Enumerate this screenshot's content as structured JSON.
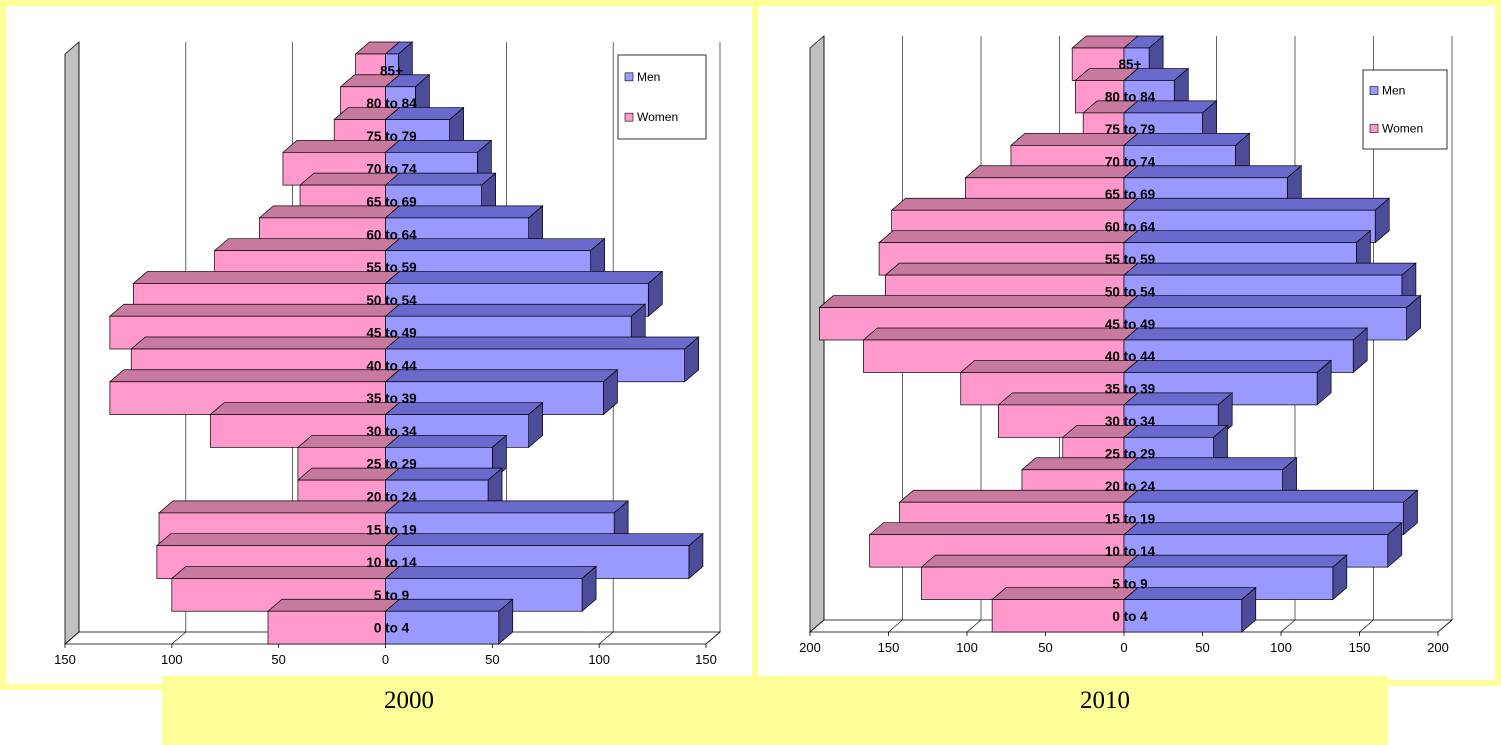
{
  "colors": {
    "men": "#9999ff",
    "men_top": "#6a6acc",
    "men_side": "#4c4c99",
    "women": "#ff99cc",
    "women_top": "#c77a9e",
    "women_side": "#b36b8f",
    "frame": "#ffff99",
    "wall": "#c0c0c0",
    "grid": "#000000"
  },
  "captions": {
    "left": "2000",
    "right": "2010"
  },
  "chart_data": [
    {
      "type": "bar",
      "orientation": "horizontal-pyramid",
      "year_label": "2000",
      "categories": [
        "0 to 4",
        "5 to 9",
        "10 to 14",
        "15 to 19",
        "20 to 24",
        "25 to 29",
        "30 to 34",
        "35 to 39",
        "40 to 44",
        "45 to 49",
        "50 to 54",
        "55 to 59",
        "60 to 64",
        "65 to 69",
        "70 to 74",
        "75 to 79",
        "80 to 84",
        "85+"
      ],
      "series": [
        {
          "name": "Men",
          "values": [
            53,
            92,
            142,
            107,
            48,
            50,
            67,
            102,
            140,
            115,
            123,
            96,
            67,
            45,
            43,
            30,
            14,
            6
          ]
        },
        {
          "name": "Women",
          "values": [
            55,
            100,
            107,
            106,
            41,
            41,
            82,
            129,
            119,
            129,
            118,
            80,
            59,
            40,
            48,
            24,
            21,
            14
          ]
        }
      ],
      "xlim": [
        -150,
        150
      ],
      "xticks": [
        -150,
        -100,
        -50,
        0,
        50,
        100,
        150
      ],
      "xtick_labels": [
        "150",
        "100",
        "50",
        "0",
        "50",
        "100",
        "150"
      ],
      "grid": true,
      "legend": {
        "position": "top-right",
        "entries": [
          "Men",
          "Women"
        ]
      }
    },
    {
      "type": "bar",
      "orientation": "horizontal-pyramid",
      "year_label": "2010",
      "categories": [
        "0 to 4",
        "5 to 9",
        "10 to 14",
        "15 to 19",
        "20 to 24",
        "25 to 29",
        "30 to 34",
        "35 to 39",
        "40 to 44",
        "45 to 49",
        "50 to 54",
        "55 to 59",
        "60 to 64",
        "65 to 69",
        "70 to 74",
        "75 to 79",
        "80 to 84",
        "85+"
      ],
      "series": [
        {
          "name": "Men",
          "values": [
            75,
            133,
            168,
            178,
            101,
            57,
            60,
            123,
            146,
            180,
            177,
            148,
            160,
            104,
            71,
            50,
            32,
            16
          ]
        },
        {
          "name": "Women",
          "values": [
            84,
            129,
            162,
            143,
            65,
            39,
            80,
            104,
            166,
            194,
            152,
            156,
            148,
            101,
            72,
            26,
            31,
            33
          ]
        }
      ],
      "xlim": [
        -200,
        200
      ],
      "xticks": [
        -200,
        -150,
        -100,
        -50,
        0,
        50,
        100,
        150,
        200
      ],
      "xtick_labels": [
        "200",
        "150",
        "100",
        "50",
        "0",
        "50",
        "100",
        "150",
        "200"
      ],
      "grid": true,
      "legend": {
        "position": "top-right",
        "entries": [
          "Men",
          "Women"
        ]
      }
    }
  ]
}
